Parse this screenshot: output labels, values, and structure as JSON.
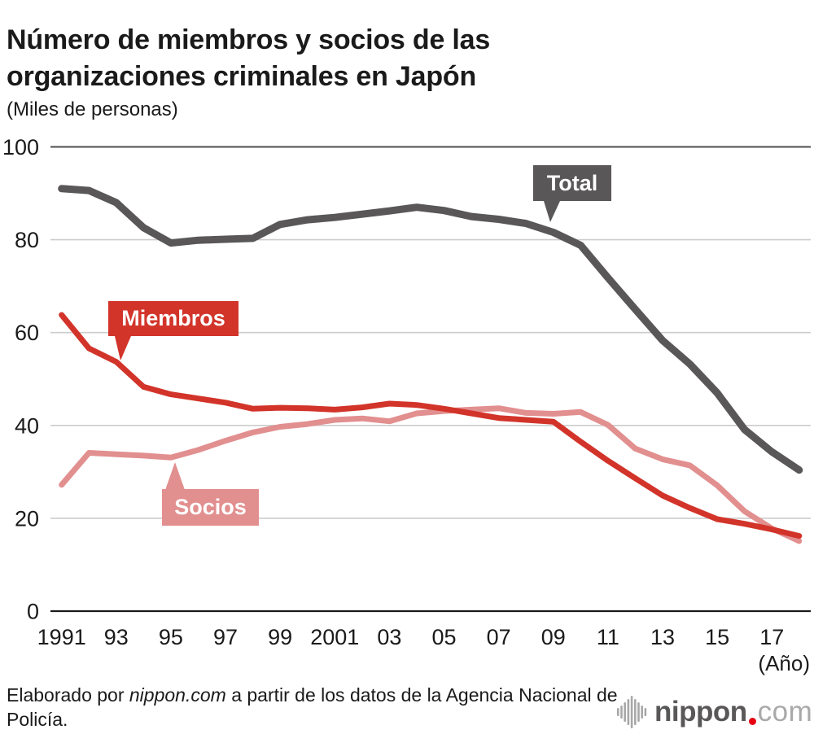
{
  "title": {
    "line1": "Número de miembros y socios de las",
    "line2": "organizaciones criminales en Japón"
  },
  "subtitle": "(Miles de personas)",
  "chart_data": {
    "type": "line",
    "x": [
      1991,
      1992,
      1993,
      1994,
      1995,
      1996,
      1997,
      1998,
      1999,
      2000,
      2001,
      2002,
      2003,
      2004,
      2005,
      2006,
      2007,
      2008,
      2009,
      2010,
      2011,
      2012,
      2013,
      2014,
      2015,
      2016,
      2017,
      2018
    ],
    "series": [
      {
        "name": "Total",
        "color": "#595757",
        "stroke_width": 9,
        "values": [
          91.0,
          90.6,
          88.0,
          82.6,
          79.3,
          79.9,
          80.1,
          80.3,
          83.3,
          84.3,
          84.8,
          85.5,
          86.2,
          87.0,
          86.3,
          85.0,
          84.4,
          83.5,
          81.6,
          78.8,
          71.8,
          65.0,
          58.3,
          53.2,
          47.0,
          39.1,
          34.3,
          30.4
        ]
      },
      {
        "name": "Miembros",
        "color": "#d2342a",
        "stroke_width": 7,
        "values": [
          63.8,
          56.6,
          53.7,
          48.3,
          46.7,
          45.8,
          44.9,
          43.6,
          43.8,
          43.7,
          43.4,
          43.9,
          44.7,
          44.4,
          43.6,
          42.6,
          41.6,
          41.2,
          40.8,
          36.5,
          32.4,
          28.6,
          24.9,
          22.2,
          19.8,
          18.8,
          17.6,
          16.2
        ]
      },
      {
        "name": "Socios",
        "color": "#e28f8f",
        "stroke_width": 7,
        "values": [
          27.2,
          34.1,
          33.8,
          33.5,
          33.1,
          34.7,
          36.7,
          38.5,
          39.7,
          40.3,
          41.2,
          41.5,
          40.9,
          42.6,
          43.1,
          43.4,
          43.7,
          42.7,
          42.5,
          42.9,
          40.1,
          35.0,
          32.7,
          31.4,
          27.1,
          21.5,
          17.8,
          15.1
        ]
      }
    ],
    "ylim": [
      0,
      100
    ],
    "yticks": [
      0,
      20,
      40,
      60,
      80,
      100
    ],
    "ytick_labels": [
      "0",
      "20",
      "40",
      "60",
      "80",
      "100"
    ],
    "xtick_years": [
      1991,
      1993,
      1995,
      1997,
      1999,
      2001,
      2003,
      2005,
      2007,
      2009,
      2011,
      2013,
      2015,
      2017
    ],
    "xtick_labels": [
      "1991",
      "93",
      "95",
      "97",
      "99",
      "2001",
      "03",
      "05",
      "07",
      "09",
      "11",
      "13",
      "15",
      "17"
    ],
    "x_axis_suffix": "(Año)",
    "grid_on": true,
    "grid_color": "#cccccc",
    "top_grid_color": "#4d4d4d",
    "axis_color": "#1a1a1a",
    "legend_position": "callouts-on-lines"
  },
  "footer": {
    "prefix": "Elaborado por ",
    "brand": "nippon.com",
    "suffix": " a partir de los datos de la Agencia Nacional de Policía."
  },
  "logo": {
    "wordmark": "nippon",
    "tld": "com",
    "dot_color": "#e60012",
    "wordmark_color": "#595757",
    "icon": "sound-wave-icon"
  }
}
